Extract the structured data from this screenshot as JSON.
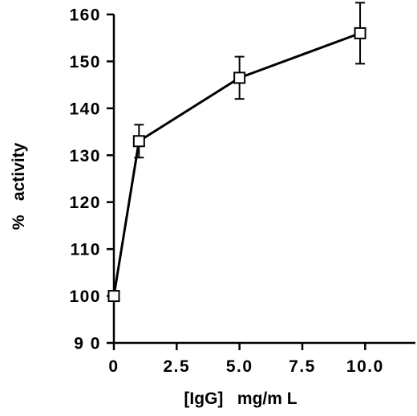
{
  "chart_data": {
    "type": "line",
    "title": "",
    "xlabel": "[IgG]   mg/m L",
    "ylabel": "%   activity",
    "xlim": [
      0,
      12
    ],
    "ylim": [
      90,
      160
    ],
    "x_ticks": [
      0,
      2.5,
      5.0,
      7.5,
      10.0
    ],
    "x_tick_labels": [
      "0",
      "2.5",
      "5.0",
      "7.5",
      "10.0"
    ],
    "y_ticks": [
      90,
      100,
      110,
      120,
      130,
      140,
      150,
      160
    ],
    "y_tick_labels": [
      "9 0",
      "100",
      "110",
      "120",
      "130",
      "140",
      "150",
      "160"
    ],
    "grid": false,
    "legend": "none",
    "marker": "open-square",
    "series": [
      {
        "x": [
          0,
          1,
          5,
          9.8
        ],
        "y": [
          100,
          133,
          146.5,
          156
        ],
        "error": [
          0,
          3.5,
          4.5,
          6.5
        ]
      }
    ]
  }
}
